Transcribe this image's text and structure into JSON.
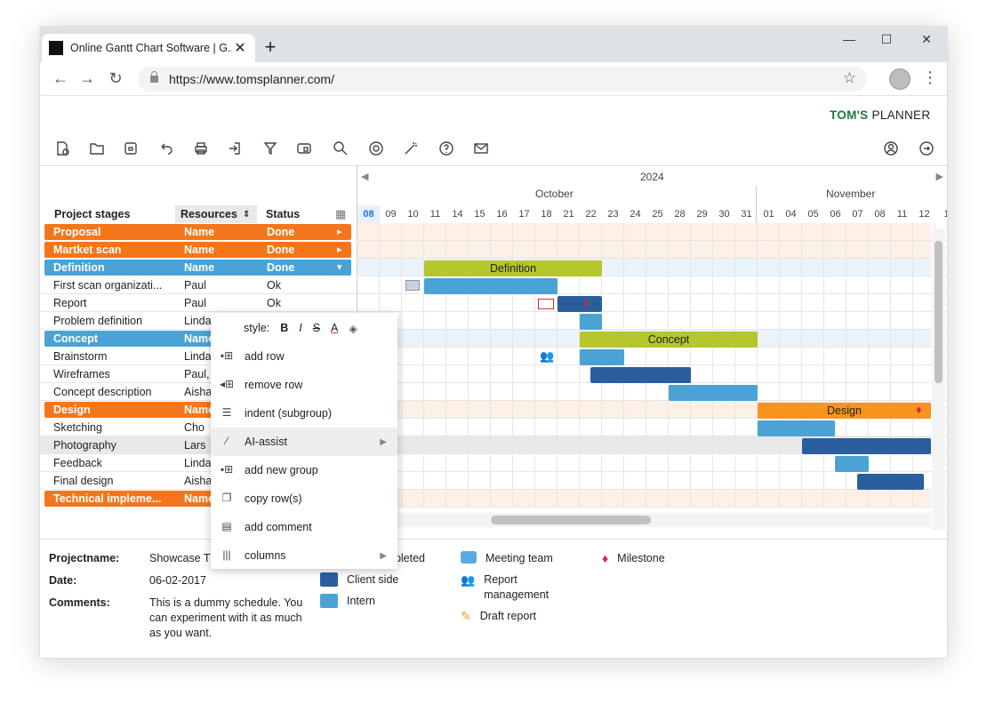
{
  "browser": {
    "tab_title": "Online Gantt Chart Software | G...",
    "tab_close": "✕",
    "new_tab": "+",
    "url": "https://www.tomsplanner.com/",
    "win_minimize": "—",
    "win_maximize": "☐",
    "win_close": "✕"
  },
  "brand": {
    "bold": "TOM'S",
    "rest": " PLANNER"
  },
  "table": {
    "headers": {
      "stages": "Project stages",
      "resources": "Resources",
      "status": "Status"
    },
    "rows": [
      {
        "name": "Proposal",
        "resource": "Name",
        "status": "Done",
        "type": "group",
        "color": "#f5761a",
        "caret": "▸"
      },
      {
        "name": "Martket scan",
        "resource": "Name",
        "status": "Done",
        "type": "group",
        "color": "#f5761a",
        "caret": "▸"
      },
      {
        "name": "Definition",
        "resource": "Name",
        "status": "Done",
        "type": "group",
        "color": "#4aa3d4",
        "caret": "▾"
      },
      {
        "name": "First scan organizati...",
        "resource": "Paul",
        "status": "Ok",
        "type": "task"
      },
      {
        "name": "Report",
        "resource": "Paul",
        "status": "Ok",
        "type": "task"
      },
      {
        "name": "Problem definition",
        "resource": "Linda",
        "status": "",
        "type": "task"
      },
      {
        "name": "Concept",
        "resource": "Name",
        "status": "",
        "type": "group",
        "color": "#4aa3d4"
      },
      {
        "name": "Brainstorm",
        "resource": "Linda",
        "status": "",
        "type": "task"
      },
      {
        "name": "Wireframes",
        "resource": "Paul,",
        "status": "",
        "type": "task"
      },
      {
        "name": "Concept description",
        "resource": "Aisha",
        "status": "",
        "type": "task"
      },
      {
        "name": "Design",
        "resource": "Name",
        "status": "",
        "type": "group",
        "color": "#f5761a"
      },
      {
        "name": "Sketching",
        "resource": "Cho",
        "status": "",
        "type": "task"
      },
      {
        "name": "Photography",
        "resource": "Lars",
        "status": "",
        "type": "task",
        "grey": true
      },
      {
        "name": "Feedback",
        "resource": "Linda",
        "status": "",
        "type": "task"
      },
      {
        "name": "Final design",
        "resource": "Aisha",
        "status": "",
        "type": "task"
      },
      {
        "name": "Technical impleme...",
        "resource": "Name",
        "status": "",
        "type": "group",
        "color": "#f5761a"
      }
    ]
  },
  "chart": {
    "year": "2024",
    "month1": "October",
    "month2": "November",
    "days": [
      "08",
      "09",
      "10",
      "11",
      "14",
      "15",
      "16",
      "17",
      "18",
      "21",
      "22",
      "23",
      "24",
      "25",
      "28",
      "29",
      "30",
      "31",
      "01",
      "04",
      "05",
      "06",
      "07",
      "08",
      "11",
      "12",
      "1"
    ],
    "bars": [
      {
        "label": "Definition",
        "color": "#b5c72a"
      },
      {
        "label": "Concept",
        "color": "#b5c72a"
      },
      {
        "label": "Design",
        "color": "#f7941d"
      }
    ],
    "colors": {
      "task": "#4aa3d4",
      "client": "#2a5f9e",
      "groupbg": "#fdf0e6",
      "bluebg": "#eaf4fa"
    }
  },
  "context_menu": {
    "style_label": "style:",
    "style_bold": "B",
    "style_italic": "I",
    "style_strike": "S",
    "style_color": "A",
    "items": [
      "add row",
      "remove row",
      "indent (subgroup)",
      "AI-assist",
      "add new group",
      "copy row(s)",
      "add comment",
      "columns"
    ]
  },
  "info": {
    "projectname_label": "Projectname:",
    "projectname_value": "Showcase T",
    "date_label": "Date:",
    "date_value": "06-02-2017",
    "comments_label": "Comments:",
    "comments_value": "This is a dummy schedule. You can experiment with it as much as you want."
  },
  "legend": {
    "completed": "npleted",
    "client_side": "Client side",
    "intern": "Intern",
    "meeting_team": "Meeting team",
    "report_management": "Report management",
    "draft_report": "Draft report",
    "milestone": "Milestone"
  }
}
